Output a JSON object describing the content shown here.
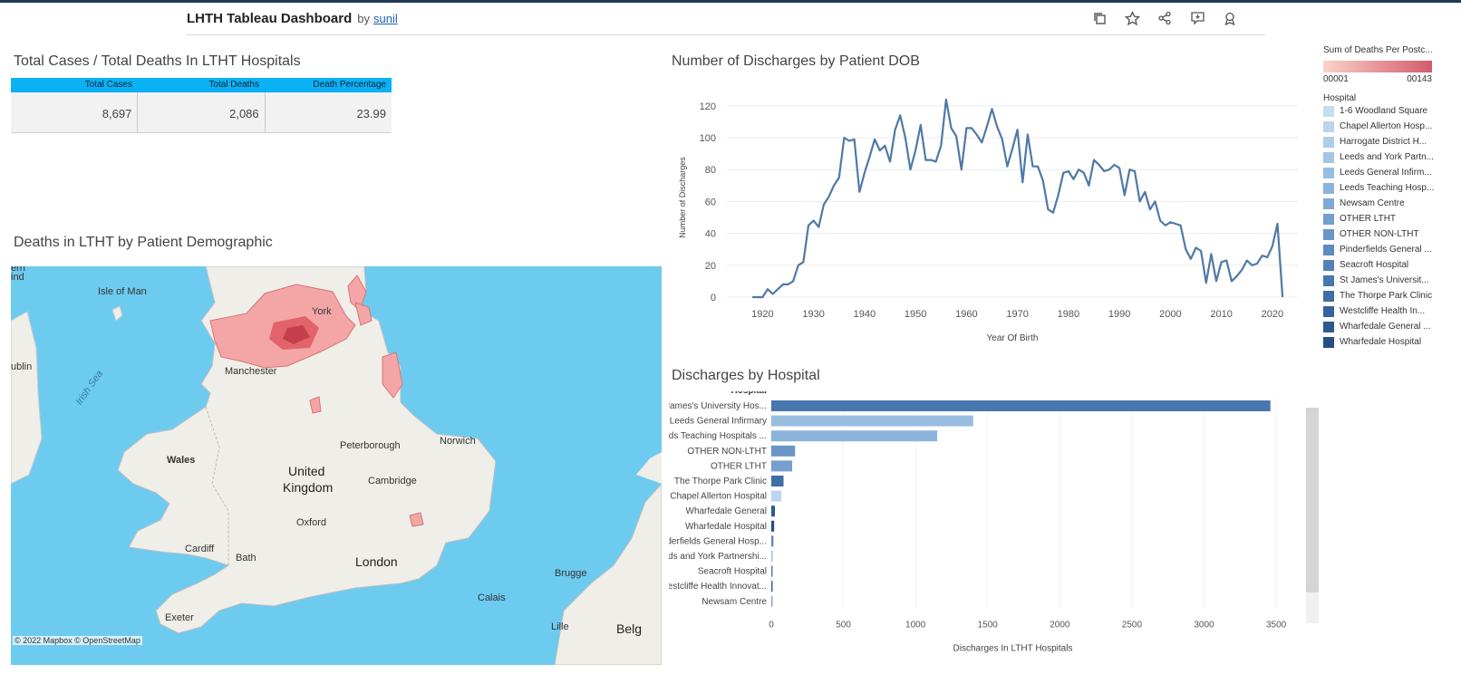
{
  "header": {
    "title": "LHTH Tableau Dashboard",
    "by": "by",
    "author": "sunil",
    "tools": [
      "copy-icon",
      "star-icon",
      "share-icon",
      "comment-icon",
      "badge-icon"
    ]
  },
  "kpi": {
    "title": "Total Cases / Total Deaths In LTHT Hospitals",
    "headers": [
      "Total Cases",
      "Total Deaths",
      "Death Percentage"
    ],
    "values": [
      "8,697",
      "2,086",
      "23.99"
    ],
    "header_color": "#0ab1f5"
  },
  "map": {
    "title": "Deaths in LTHT by Patient Demographic",
    "labels": [
      "Isle of Man",
      "York",
      "Manchester",
      "Wales",
      "United",
      "Kingdom",
      "Peterborough",
      "Norwich",
      "Cambridge",
      "Oxford",
      "Cardiff",
      "Bath",
      "London",
      "Exeter",
      "Brugge",
      "Calais",
      "Lille",
      "Belg",
      "ublin",
      "ern",
      "ind",
      "Irish Sea"
    ],
    "attribution": "© 2022 Mapbox  © OpenStreetMap",
    "sea_color": "#6ecbf0",
    "land_color": "#efeee8",
    "cluster_color": "#d9404d"
  },
  "line_chart_title": "Number of Discharges by Patient DOB",
  "bar_chart_title": "Discharges by Hospital",
  "legend": {
    "title": "Sum of Deaths Per Postc...",
    "range_min": "00001",
    "range_max": "00143",
    "hospital_title": "Hospital",
    "items": [
      {
        "label": "1-6 Woodland Square",
        "color": "#c6dcef"
      },
      {
        "label": "Chapel Allerton Hosp...",
        "color": "#bcd5ec"
      },
      {
        "label": "Harrogate District H...",
        "color": "#b0cde8"
      },
      {
        "label": "Leeds and York Partn...",
        "color": "#a5c5e4"
      },
      {
        "label": "Leeds General Infirm...",
        "color": "#98bde0"
      },
      {
        "label": "Leeds Teaching Hosp...",
        "color": "#8cb3da"
      },
      {
        "label": "Newsam Centre",
        "color": "#80a9d4"
      },
      {
        "label": "OTHER LTHT",
        "color": "#749fce"
      },
      {
        "label": "OTHER NON-LTHT",
        "color": "#6995c7"
      },
      {
        "label": "Pinderfields General ...",
        "color": "#5e8bc0"
      },
      {
        "label": "Seacroft Hospital",
        "color": "#5381b8"
      },
      {
        "label": "St James's Universit...",
        "color": "#4877b0"
      },
      {
        "label": "The Thorpe Park Clinic",
        "color": "#3f6da6"
      },
      {
        "label": "Westcliffe Health In...",
        "color": "#36639b"
      },
      {
        "label": "Wharfedale General ...",
        "color": "#2d598f"
      },
      {
        "label": "Wharfedale Hospital",
        "color": "#254f83"
      }
    ]
  },
  "chart_data": [
    {
      "type": "line",
      "title": "Number of Discharges by Patient DOB",
      "xlabel": "Year Of Birth",
      "ylabel": "Number of Discharges",
      "xlim": [
        1913,
        2025
      ],
      "ylim": [
        0,
        125
      ],
      "xticks": [
        1920,
        1930,
        1940,
        1950,
        1960,
        1970,
        1980,
        1990,
        2000,
        2010,
        2020
      ],
      "yticks": [
        0,
        20,
        40,
        60,
        80,
        100,
        120
      ],
      "grid": true,
      "color": "#4e79a7",
      "x": [
        1918,
        1920,
        1921,
        1922,
        1923,
        1924,
        1925,
        1926,
        1927,
        1928,
        1929,
        1930,
        1931,
        1932,
        1933,
        1934,
        1935,
        1936,
        1937,
        1938,
        1939,
        1940,
        1941,
        1942,
        1943,
        1944,
        1945,
        1946,
        1947,
        1948,
        1949,
        1950,
        1951,
        1952,
        1953,
        1954,
        1955,
        1956,
        1957,
        1958,
        1959,
        1960,
        1961,
        1962,
        1963,
        1964,
        1965,
        1966,
        1967,
        1968,
        1969,
        1970,
        1971,
        1972,
        1973,
        1974,
        1975,
        1976,
        1977,
        1978,
        1979,
        1980,
        1981,
        1982,
        1983,
        1984,
        1985,
        1986,
        1987,
        1988,
        1989,
        1990,
        1991,
        1992,
        1993,
        1994,
        1995,
        1996,
        1997,
        1998,
        1999,
        2000,
        2001,
        2002,
        2003,
        2004,
        2005,
        2006,
        2007,
        2008,
        2009,
        2010,
        2011,
        2012,
        2013,
        2014,
        2015,
        2016,
        2017,
        2018,
        2019,
        2020,
        2021,
        2022
      ],
      "y": [
        0,
        0,
        5,
        2,
        5,
        8,
        8,
        10,
        20,
        22,
        45,
        48,
        44,
        58,
        63,
        70,
        75,
        100,
        98,
        99,
        66,
        78,
        88,
        99,
        92,
        95,
        85,
        105,
        114,
        100,
        80,
        92,
        108,
        86,
        86,
        85,
        95,
        124,
        106,
        101,
        80,
        106,
        106,
        102,
        97,
        107,
        118,
        107,
        99,
        82,
        93,
        105,
        72,
        102,
        82,
        82,
        73,
        55,
        53,
        64,
        78,
        79,
        74,
        80,
        78,
        70,
        86,
        83,
        79,
        80,
        83,
        81,
        64,
        80,
        79,
        60,
        66,
        55,
        60,
        48,
        45,
        47,
        46,
        45,
        30,
        24,
        31,
        29,
        9,
        27,
        10,
        22,
        23,
        10,
        13,
        17,
        23,
        20,
        21,
        26,
        25,
        32,
        46,
        0
      ]
    },
    {
      "type": "bar",
      "orientation": "horizontal",
      "title": "Discharges by Hospital",
      "ylabel": "Hospital",
      "xlabel": "Discharges In LTHT Hospitals",
      "xlim": [
        0,
        3600
      ],
      "xticks": [
        0,
        500,
        1000,
        1500,
        2000,
        2500,
        3000,
        3500
      ],
      "categories": [
        "St James's University Hos...",
        "Leeds General Infirmary",
        "Leeds Teaching Hospitals ...",
        "OTHER NON-LTHT",
        "OTHER LTHT",
        "The Thorpe Park Clinic",
        "Chapel Allerton Hospital",
        "Wharfedale General",
        "Wharfedale Hospital",
        "Pinderfields General Hosp...",
        "Leeds and York Partnershi...",
        "Seacroft Hospital",
        "Westcliffe Health Innovat...",
        "Newsam Centre"
      ],
      "values": [
        3460,
        1400,
        1150,
        165,
        145,
        85,
        70,
        25,
        20,
        15,
        10,
        8,
        5,
        2
      ],
      "colors": [
        "#4877b0",
        "#98bde0",
        "#8cb3da",
        "#6995c7",
        "#749fce",
        "#3f6da6",
        "#bcd5ec",
        "#2d598f",
        "#254f83",
        "#5e8bc0",
        "#a5c5e4",
        "#5381b8",
        "#36639b",
        "#80a9d4"
      ]
    }
  ]
}
